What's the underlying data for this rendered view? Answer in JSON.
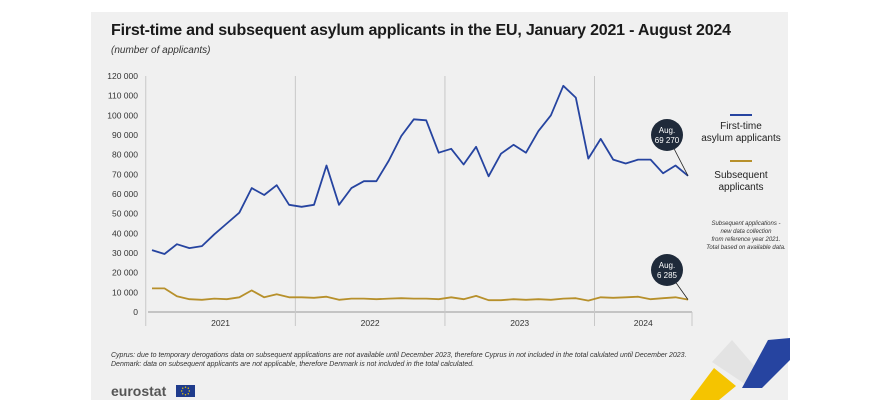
{
  "title": "First-time and subsequent asylum applicants in the EU, January 2021 - August 2024",
  "subtitle": "(number of applicants)",
  "legend": [
    {
      "label_lines": [
        "First-time",
        "asylum applicants"
      ],
      "color": "#2644a0"
    },
    {
      "label_lines": [
        "Subsequent",
        "applicants"
      ],
      "color": "#b7902b"
    }
  ],
  "note_lines": [
    "Subsequent applications -",
    "new data collection",
    "from reference year 2021.",
    "Total based on available data."
  ],
  "footnotes": [
    "Cyprus: due to temporary derogations data on subsequent applications are not available until December 2023, therefore Cyprus in not included in the total calulated until December 2023.",
    "Denmark: data on subsequent applicants are not applicable, therefore Denmark is not included in the total calculated."
  ],
  "logo": "eurostat",
  "chart_data": {
    "type": "line",
    "title": "First-time and subsequent asylum applicants in the EU, January 2021 - August 2024",
    "xlabel": "",
    "ylabel": "",
    "ylim": [
      0,
      120000
    ],
    "yticks": [
      0,
      10000,
      20000,
      30000,
      40000,
      50000,
      60000,
      70000,
      80000,
      90000,
      100000,
      110000,
      120000
    ],
    "ytick_labels": [
      "0",
      "10 000",
      "20 000",
      "30 000",
      "40 000",
      "50 000",
      "60 000",
      "70 000",
      "80 000",
      "90 000",
      "100 000",
      "110 000",
      "120 000"
    ],
    "years": [
      "2021",
      "2022",
      "2023",
      "2024"
    ],
    "months_per_year": [
      12,
      12,
      12,
      8
    ],
    "grid": false,
    "legend_position": "right",
    "series": [
      {
        "name": "First-time asylum applicants",
        "color": "#2644a0",
        "values": [
          31500,
          29500,
          34500,
          32500,
          33500,
          39500,
          45000,
          50500,
          63000,
          59500,
          64500,
          54500,
          53500,
          54500,
          74500,
          54500,
          63000,
          66500,
          66500,
          77000,
          89500,
          98000,
          97500,
          81000,
          83000,
          75000,
          84000,
          69000,
          80500,
          85000,
          81000,
          92000,
          100000,
          115000,
          109000,
          78000,
          88000,
          77500,
          75500,
          77500,
          77500,
          70500,
          74500,
          69270
        ]
      },
      {
        "name": "Subsequent applicants",
        "color": "#b7902b",
        "values": [
          12000,
          12000,
          8000,
          6500,
          6200,
          6800,
          6500,
          7500,
          11000,
          7500,
          9000,
          7500,
          7500,
          7200,
          7800,
          6200,
          6800,
          6800,
          6500,
          6800,
          7000,
          6800,
          6800,
          6500,
          7500,
          6500,
          8200,
          6000,
          6000,
          6500,
          6200,
          6500,
          6200,
          6800,
          7000,
          5800,
          7500,
          7200,
          7500,
          7800,
          6500,
          7000,
          7500,
          6285
        ]
      }
    ],
    "annotations": [
      {
        "series": 0,
        "lines": [
          "Aug.",
          "69 270"
        ]
      },
      {
        "series": 1,
        "lines": [
          "Aug.",
          "6 285"
        ]
      }
    ]
  }
}
